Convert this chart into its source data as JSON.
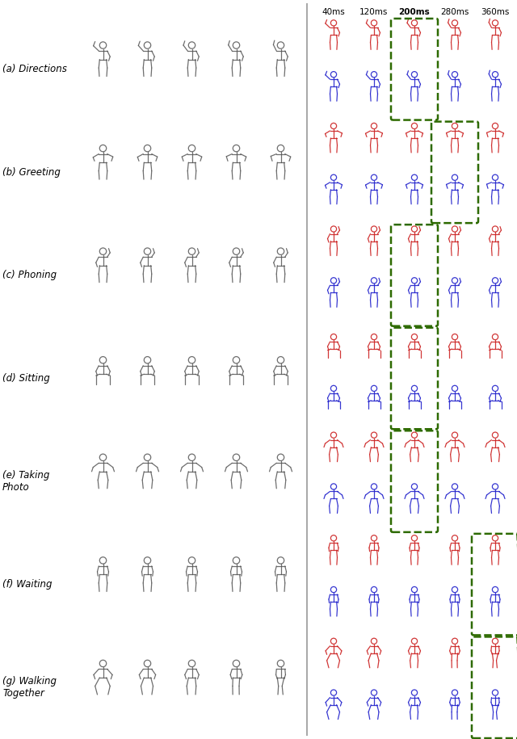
{
  "row_labels": [
    "(a) Directions",
    "(b) Greeting",
    "(c) Phoning",
    "(d) Sitting",
    "(e) Taking\nPhoto",
    "(f) Waiting",
    "(g) Walking\nTogether"
  ],
  "time_labels": [
    "40ms",
    "120ms",
    "200ms",
    "280ms",
    "360ms"
  ],
  "highlight_col": [
    2,
    3,
    2,
    2,
    2,
    4,
    4
  ],
  "n_rows": 7,
  "gray_color": "#555555",
  "red_color": "#cc2222",
  "blue_color": "#2222cc",
  "green_box_color": "#2d6a00",
  "bg_color": "#ffffff",
  "fig_width": 6.4,
  "fig_height": 9.15,
  "label_fontsize": 8.5,
  "time_fontsize": 7.5
}
